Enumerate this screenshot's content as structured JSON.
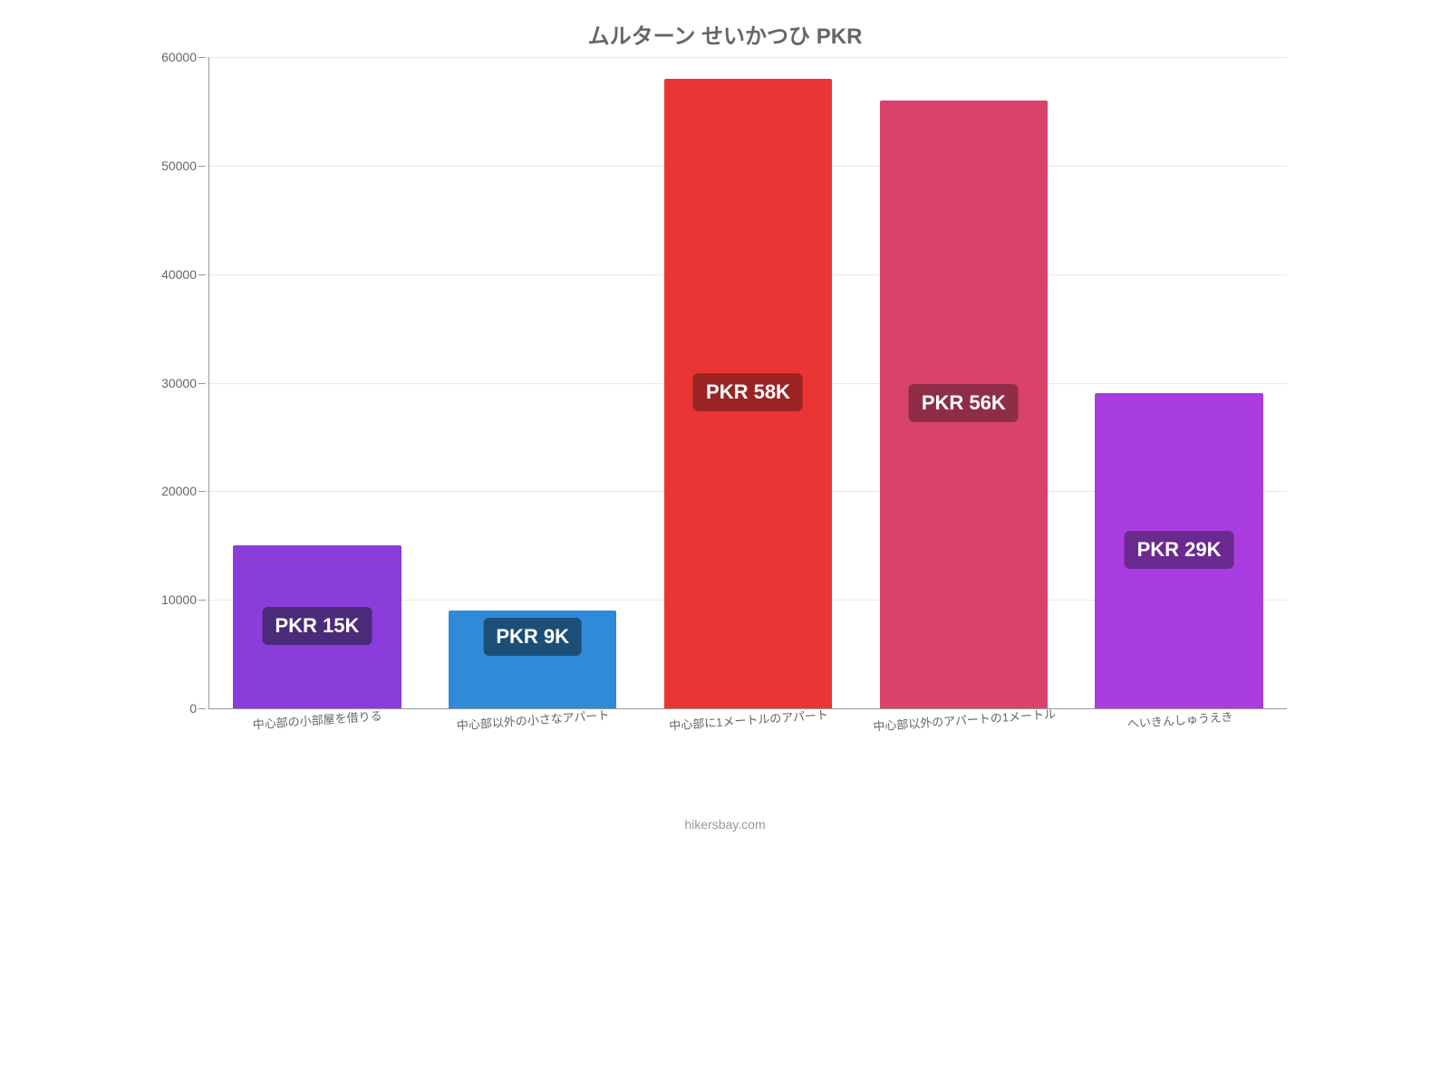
{
  "chart": {
    "type": "bar",
    "title": "ムルターン せいかつひ PKR",
    "title_fontsize": 24,
    "title_color": "#666666",
    "background_color": "#ffffff",
    "grid_color": "#e8e8e8",
    "axis_color": "#999999",
    "ylim": [
      0,
      60000
    ],
    "ytick_step": 10000,
    "yticks": [
      0,
      10000,
      20000,
      30000,
      40000,
      50000,
      60000
    ],
    "bar_width": 0.78,
    "categories": [
      "中心部の小部屋を借りる",
      "中心部以外の小さなアパート",
      "中心部に1メートルのアパート",
      "中心部以外のアパートの1メートル",
      "へいきんしゅうえき"
    ],
    "values": [
      15000,
      9000,
      58000,
      56000,
      29000
    ],
    "bar_colors": [
      "#8a3ddb",
      "#2f8ad9",
      "#ea3535",
      "#d9426a",
      "#a93de0"
    ],
    "label_bg_colors": [
      "#4b2a7a",
      "#1d4e78",
      "#9c2323",
      "#8f2d47",
      "#6a2a8f"
    ],
    "value_labels": [
      "PKR 15K",
      "PKR 9K",
      "PKR 58K",
      "PKR 56K",
      "PKR 29K"
    ],
    "label_fontsize": 22,
    "xlabel_fontsize": 13,
    "ylabel_fontsize": 14
  },
  "source": "hikersbay.com"
}
